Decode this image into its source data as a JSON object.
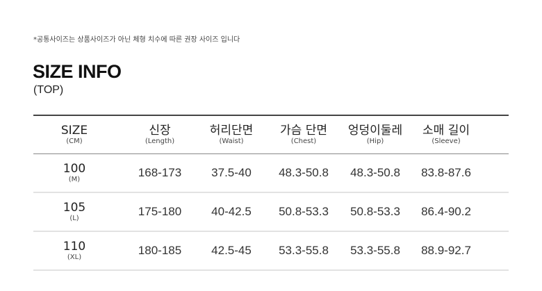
{
  "note": "*공통사이즈는 상품사이즈가 아닌 체형 치수에 따른 권장 사이즈 입니다",
  "title": "SIZE INFO",
  "subtitle": "(TOP)",
  "columns": [
    {
      "label": "SIZE",
      "sub": "(CM)"
    },
    {
      "label": "신장",
      "sub": "(Length)"
    },
    {
      "label": "허리단면",
      "sub": "(Waist)"
    },
    {
      "label": "가슴 단면",
      "sub": "(Chest)"
    },
    {
      "label": "엉덩이둘레",
      "sub": "(Hip)"
    },
    {
      "label": "소매 길이",
      "sub": "(Sleeve)"
    }
  ],
  "rows": [
    {
      "size": "100",
      "size_sub": "(M)",
      "values": [
        "168-173",
        "37.5-40",
        "48.3-50.8",
        "48.3-50.8",
        "83.8-87.6"
      ]
    },
    {
      "size": "105",
      "size_sub": "(L)",
      "values": [
        "175-180",
        "40-42.5",
        "50.8-53.3",
        "50.8-53.3",
        "86.4-90.2"
      ]
    },
    {
      "size": "110",
      "size_sub": "(XL)",
      "values": [
        "180-185",
        "42.5-45",
        "53.3-55.8",
        "53.3-55.8",
        "88.9-92.7"
      ]
    }
  ]
}
